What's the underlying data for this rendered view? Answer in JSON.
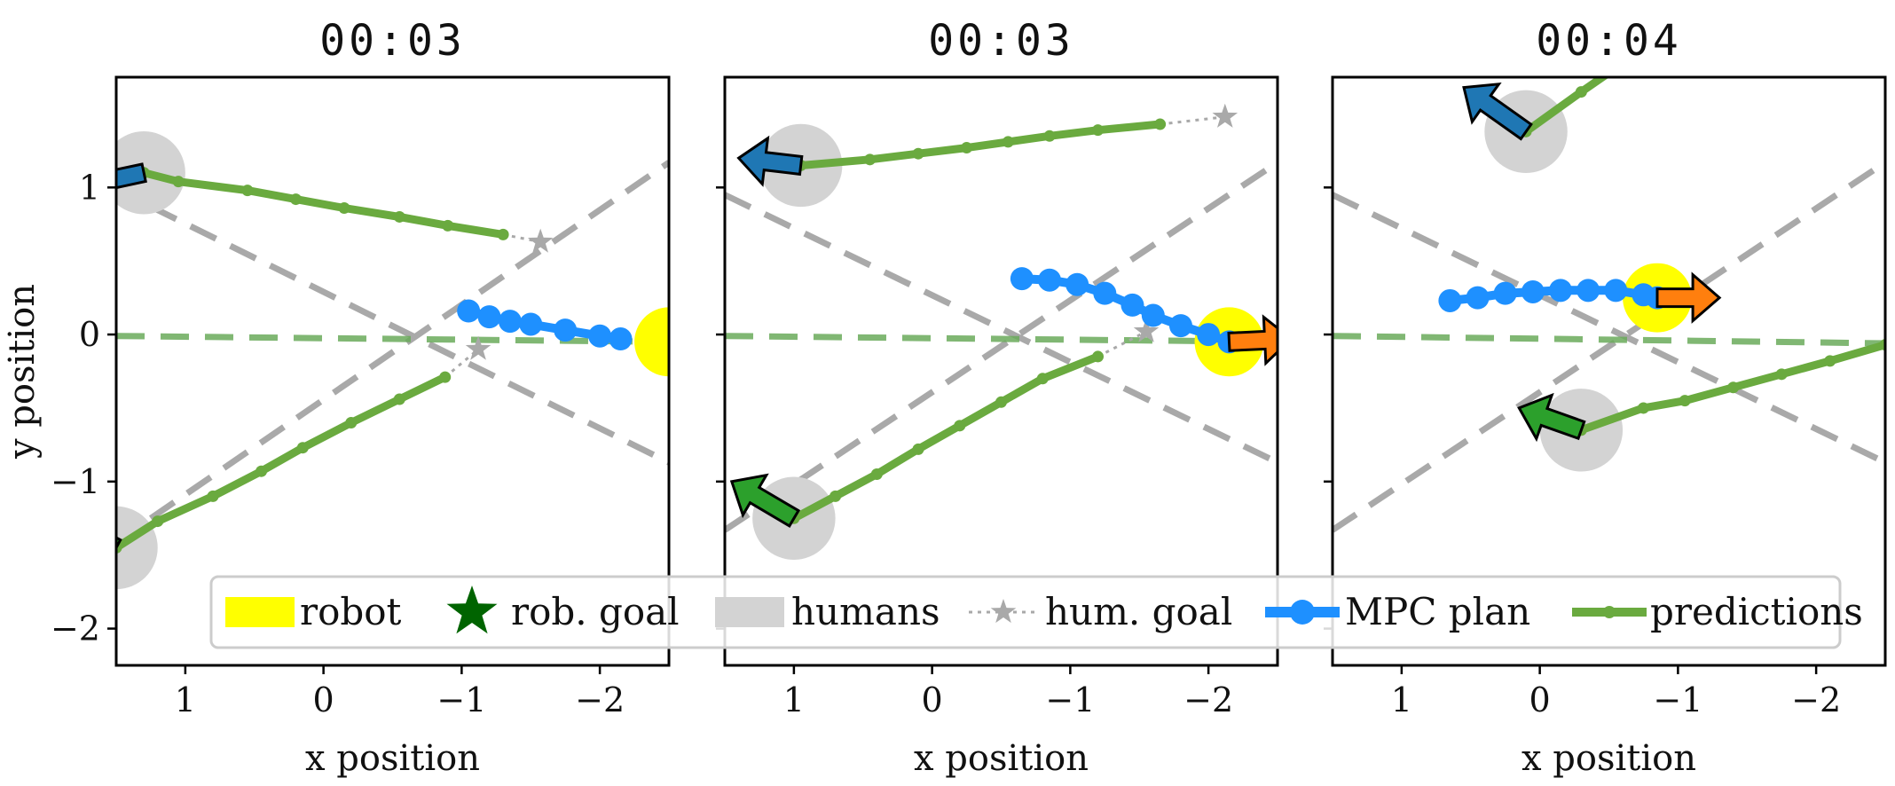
{
  "figure": {
    "legend": [
      {
        "key": "robot",
        "label": "robot",
        "color": "#ffff00"
      },
      {
        "key": "rob_goal",
        "label": "rob. goal",
        "color": "#006400"
      },
      {
        "key": "humans",
        "label": "humans",
        "color": "#d3d3d3"
      },
      {
        "key": "hum_goal",
        "label": "hum. goal",
        "color": "#a9a9a9"
      },
      {
        "key": "mpc_plan",
        "label": "MPC plan",
        "color": "#1e90ff"
      },
      {
        "key": "predictions",
        "label": "predictions",
        "color": "#6aaa3f"
      }
    ],
    "legend_placement": "lower-center",
    "colors": {
      "robot": "#ffff00",
      "human": "#d3d3d3",
      "mpc_plan": "#1e90ff",
      "prediction": "#6aaa3f",
      "guide_dashed": "#a9a9a9",
      "center_dashed": "#6aaa5a",
      "human_arrow": "#1f77b4",
      "human_arrow_2": "#2ca02c",
      "robot_arrow": "#ff7f0e"
    }
  },
  "chart_data": [
    {
      "type": "scatter",
      "title": "00:03",
      "xlabel": "x position",
      "ylabel": "y position",
      "xlim": [
        1.5,
        -2.5
      ],
      "ylim": [
        -2.25,
        1.75
      ],
      "xticks": [
        1,
        0,
        -1,
        -2
      ],
      "xtick_labels": [
        "1",
        "0",
        "−1",
        "−2"
      ],
      "yticks": [
        1,
        0,
        -1,
        -2
      ],
      "ytick_labels": [
        "1",
        "0",
        "−1",
        "−2"
      ],
      "guide_lines": [
        {
          "style": "gray-dashed",
          "points": [
            [
              1.25,
              0.87
            ],
            [
              -2.5,
              -0.87
            ]
          ]
        },
        {
          "style": "gray-dashed",
          "points": [
            [
              1.25,
              -1.25
            ],
            [
              -2.5,
              1.17
            ]
          ]
        },
        {
          "style": "green-dashed",
          "points": [
            [
              1.5,
              -0.01
            ],
            [
              -2.5,
              -0.05
            ]
          ]
        }
      ],
      "robot": {
        "x": -2.5,
        "y": -0.05,
        "arrow_dx": -0.42,
        "arrow_dy": 0.0
      },
      "mpc_plan": [
        [
          -1.05,
          0.16
        ],
        [
          -1.2,
          0.12
        ],
        [
          -1.35,
          0.09
        ],
        [
          -1.5,
          0.07
        ],
        [
          -1.75,
          0.03
        ],
        [
          -2.0,
          -0.01
        ],
        [
          -2.15,
          -0.03
        ]
      ],
      "humans": [
        {
          "x": 1.3,
          "y": 1.1,
          "arrow_dx": 0.45,
          "arrow_dy": -0.09,
          "arrow": "blue",
          "prediction": [
            [
              1.3,
              1.1
            ],
            [
              1.05,
              1.04
            ],
            [
              0.55,
              0.98
            ],
            [
              0.2,
              0.92
            ],
            [
              -0.15,
              0.86
            ],
            [
              -0.55,
              0.8
            ],
            [
              -0.9,
              0.74
            ],
            [
              -1.3,
              0.68
            ]
          ],
          "goal": {
            "x": -1.57,
            "y": 0.63
          }
        },
        {
          "x": 1.5,
          "y": -1.45,
          "arrow_dx": 0.5,
          "arrow_dy": 0.25,
          "arrow": "green",
          "prediction": [
            [
              1.5,
              -1.45
            ],
            [
              1.2,
              -1.27
            ],
            [
              0.8,
              -1.1
            ],
            [
              0.45,
              -0.93
            ],
            [
              0.15,
              -0.77
            ],
            [
              -0.2,
              -0.6
            ],
            [
              -0.55,
              -0.44
            ],
            [
              -0.88,
              -0.29
            ]
          ],
          "goal": {
            "x": -1.12,
            "y": -0.1
          }
        }
      ]
    },
    {
      "type": "scatter",
      "title": "00:03",
      "xlabel": "x position",
      "ylabel": "",
      "xlim": [
        1.5,
        -2.5
      ],
      "ylim": [
        -2.25,
        1.75
      ],
      "xticks": [
        1,
        0,
        -1,
        -2
      ],
      "xtick_labels": [
        "1",
        "0",
        "−1",
        "−2"
      ],
      "yticks": [
        1,
        0,
        -1,
        -2
      ],
      "ytick_labels": [],
      "guide_lines": [
        {
          "style": "gray-dashed",
          "points": [
            [
              1.5,
              0.95
            ],
            [
              -2.5,
              -0.87
            ]
          ]
        },
        {
          "style": "gray-dashed",
          "points": [
            [
              1.5,
              -1.33
            ],
            [
              -2.5,
              1.17
            ]
          ]
        },
        {
          "style": "green-dashed",
          "points": [
            [
              1.5,
              -0.01
            ],
            [
              -2.5,
              -0.05
            ]
          ]
        }
      ],
      "robot": {
        "x": -2.15,
        "y": -0.05,
        "arrow_dx": -0.45,
        "arrow_dy": 0.02
      },
      "mpc_plan": [
        [
          -0.65,
          0.38
        ],
        [
          -0.85,
          0.37
        ],
        [
          -1.05,
          0.34
        ],
        [
          -1.25,
          0.28
        ],
        [
          -1.45,
          0.2
        ],
        [
          -1.6,
          0.13
        ],
        [
          -1.8,
          0.06
        ],
        [
          -2.0,
          0.0
        ],
        [
          -2.15,
          -0.05
        ]
      ],
      "humans": [
        {
          "x": 0.95,
          "y": 1.15,
          "arrow_dx": 0.45,
          "arrow_dy": 0.05,
          "arrow": "blue",
          "prediction": [
            [
              0.95,
              1.15
            ],
            [
              0.45,
              1.19
            ],
            [
              0.1,
              1.23
            ],
            [
              -0.25,
              1.27
            ],
            [
              -0.55,
              1.31
            ],
            [
              -0.85,
              1.35
            ],
            [
              -1.2,
              1.39
            ],
            [
              -1.65,
              1.43
            ]
          ],
          "goal": {
            "x": -2.12,
            "y": 1.48
          }
        },
        {
          "x": 1.0,
          "y": -1.25,
          "arrow_dx": 0.45,
          "arrow_dy": 0.25,
          "arrow": "green",
          "prediction": [
            [
              1.0,
              -1.25
            ],
            [
              0.7,
              -1.1
            ],
            [
              0.4,
              -0.95
            ],
            [
              0.1,
              -0.78
            ],
            [
              -0.2,
              -0.62
            ],
            [
              -0.5,
              -0.46
            ],
            [
              -0.8,
              -0.3
            ],
            [
              -1.2,
              -0.15
            ]
          ],
          "goal": {
            "x": -1.55,
            "y": 0.02
          }
        }
      ]
    },
    {
      "type": "scatter",
      "title": "00:04",
      "xlabel": "x position",
      "ylabel": "",
      "xlim": [
        1.5,
        -2.5
      ],
      "ylim": [
        -2.25,
        1.75
      ],
      "xticks": [
        1,
        0,
        -1,
        -2
      ],
      "xtick_labels": [
        "1",
        "0",
        "−1",
        "−2"
      ],
      "yticks": [
        1,
        0,
        -1,
        -2
      ],
      "ytick_labels": [],
      "guide_lines": [
        {
          "style": "gray-dashed",
          "points": [
            [
              1.5,
              0.95
            ],
            [
              -2.5,
              -0.87
            ]
          ]
        },
        {
          "style": "gray-dashed",
          "points": [
            [
              1.5,
              -1.33
            ],
            [
              -2.5,
              1.17
            ]
          ]
        },
        {
          "style": "green-dashed",
          "points": [
            [
              1.5,
              -0.01
            ],
            [
              -2.5,
              -0.06
            ]
          ]
        }
      ],
      "robot": {
        "x": -0.85,
        "y": 0.25,
        "arrow_dx": -0.45,
        "arrow_dy": 0.0
      },
      "mpc_plan": [
        [
          0.65,
          0.23
        ],
        [
          0.45,
          0.25
        ],
        [
          0.25,
          0.28
        ],
        [
          0.05,
          0.29
        ],
        [
          -0.15,
          0.3
        ],
        [
          -0.35,
          0.3
        ],
        [
          -0.55,
          0.3
        ],
        [
          -0.75,
          0.27
        ],
        [
          -0.85,
          0.25
        ]
      ],
      "humans": [
        {
          "x": 0.1,
          "y": 1.38,
          "arrow_dx": 0.45,
          "arrow_dy": 0.3,
          "arrow": "blue",
          "prediction": [
            [
              0.1,
              1.38
            ],
            [
              -0.3,
              1.65
            ],
            [
              -0.5,
              1.78
            ]
          ],
          "goal": null
        },
        {
          "x": -0.3,
          "y": -0.65,
          "arrow_dx": 0.45,
          "arrow_dy": 0.15,
          "arrow": "green",
          "prediction": [
            [
              -0.3,
              -0.65
            ],
            [
              -0.75,
              -0.5
            ],
            [
              -1.05,
              -0.45
            ],
            [
              -1.4,
              -0.36
            ],
            [
              -1.75,
              -0.27
            ],
            [
              -2.1,
              -0.18
            ],
            [
              -2.5,
              -0.07
            ]
          ],
          "goal": null
        }
      ]
    }
  ]
}
